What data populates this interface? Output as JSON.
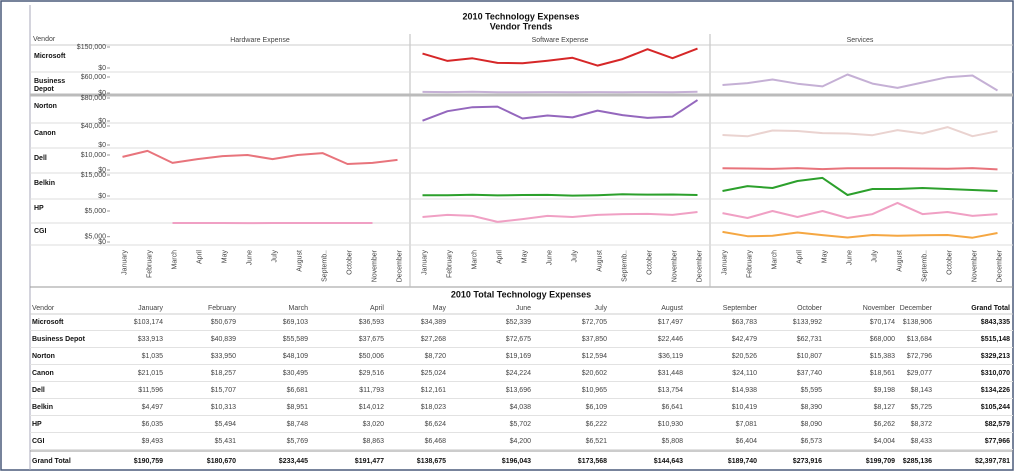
{
  "chart_data": {
    "type": "line",
    "title": "2010 Technology Expenses",
    "subtitle": "Vendor Trends",
    "row_header": "Vendor",
    "panels": [
      "Hardware Expense",
      "Software Expense",
      "Services"
    ],
    "categories": [
      "January",
      "February",
      "March",
      "April",
      "May",
      "June",
      "July",
      "August",
      "Septemb..",
      "October",
      "November",
      "December"
    ],
    "rows": [
      {
        "name": "Microsoft",
        "ylim": [
          0,
          150000
        ],
        "yticks": [
          {
            "value": 150000,
            "label": "$150,000"
          },
          {
            "value": 0,
            "label": "$0"
          }
        ],
        "series": [
          {
            "name": "Software Expense",
            "color": "#d62728",
            "values": [
              103174,
              50679,
              69103,
              36593,
              34389,
              52339,
              72705,
              17497,
              63783,
              133992,
              70174,
              138906
            ]
          }
        ]
      },
      {
        "name": "Business Depot",
        "ylim": [
          0,
          60000
        ],
        "yticks": [
          {
            "value": 60000,
            "label": "$60,000"
          },
          {
            "value": 0,
            "label": "$0"
          }
        ],
        "series": [
          {
            "name": "Software Expense",
            "color": "#c5b0d5",
            "values": [
              4000,
              3500,
              5000,
              3000,
              2500,
              3500,
              2800,
              3200,
              3000,
              3500,
              2500,
              4500
            ]
          },
          {
            "name": "Services",
            "color": "#c5b0d5",
            "values": [
              29900,
              37300,
              50600,
              34700,
              24800,
              69200,
              35100,
              19200,
              39500,
              59200,
              65500,
              9200
            ]
          }
        ]
      },
      {
        "name": "Norton",
        "ylim": [
          0,
          80000
        ],
        "yticks": [
          {
            "value": 80000,
            "label": "$80,000"
          },
          {
            "value": 0,
            "label": "$0"
          }
        ],
        "series": [
          {
            "name": "Software Expense",
            "color": "#9467bd",
            "values": [
              1035,
              33950,
              48109,
              50006,
              8720,
              19169,
              12594,
              36119,
              20526,
              10807,
              15383,
              72796
            ]
          }
        ]
      },
      {
        "name": "Canon",
        "ylim": [
          0,
          40000
        ],
        "yticks": [
          {
            "value": 40000,
            "label": "$40,000"
          },
          {
            "value": 0,
            "label": "$0"
          }
        ],
        "series": [
          {
            "name": "Services",
            "color": "#ead3d0",
            "values": [
              21015,
              18257,
              30495,
              29516,
              25024,
              24224,
              20602,
              31448,
              24110,
              37740,
              18561,
              29077
            ]
          }
        ]
      },
      {
        "name": "Dell",
        "ylim": [
          0,
          15000
        ],
        "yticks": [
          {
            "value": 10000,
            "label": "$10,000"
          },
          {
            "value": 0,
            "label": "$0"
          }
        ],
        "series": [
          {
            "name": "Hardware Expense",
            "color": "#e8747c",
            "values": [
              8700,
              12700,
              4700,
              7300,
              9300,
              10000,
              7300,
              10000,
              11300,
              4000,
              4700,
              6700
            ]
          },
          {
            "name": "Services",
            "color": "#e8747c",
            "values": [
              1200,
              1000,
              700,
              1300,
              600,
              1100,
              1100,
              1100,
              1000,
              800,
              1300,
              400
            ]
          }
        ]
      },
      {
        "name": "Belkin",
        "ylim": [
          0,
          15000
        ],
        "yticks": [
          {
            "value": 15000,
            "label": "$15,000"
          },
          {
            "value": 0,
            "label": "$0"
          }
        ],
        "series": [
          {
            "name": "Software Expense",
            "color": "#2ca02c",
            "values": [
              500,
              600,
              900,
              400,
              700,
              800,
              300,
              600,
              1200,
              1000,
              1100,
              700
            ]
          },
          {
            "name": "Services",
            "color": "#2ca02c",
            "values": [
              3600,
              7100,
              5700,
              10700,
              12900,
              700,
              5000,
              5000,
              5700,
              5000,
              4300,
              3600
            ]
          }
        ]
      },
      {
        "name": "HP",
        "ylim": [
          0,
          9000
        ],
        "yticks": [
          {
            "value": 5000,
            "label": "$5,000"
          }
        ],
        "series": [
          {
            "name": "Hardware Expense",
            "color": "#f0a0c4",
            "values": [
              null,
              null,
              400,
              400,
              400,
              350,
              400,
              380,
              380,
              370,
              380,
              null
            ]
          },
          {
            "name": "Software Expense",
            "color": "#f0a0c4",
            "values": [
              2700,
              3500,
              3100,
              800,
              1900,
              3100,
              2700,
              3500,
              3800,
              3900,
              3500,
              4600
            ]
          },
          {
            "name": "Services",
            "color": "#f0a0c4",
            "values": [
              4200,
              2300,
              5000,
              2700,
              5000,
              2300,
              3800,
              8100,
              3800,
              4600,
              3100,
              3800
            ]
          }
        ]
      },
      {
        "name": "CGI",
        "ylim": [
          0,
          15000
        ],
        "yticks": [
          {
            "value": 5000,
            "label": "$5,000"
          },
          {
            "value": 0,
            "label": "$0"
          }
        ],
        "series": [
          {
            "name": "Services",
            "color": "#f5a742",
            "values": [
              9493,
              5431,
              5769,
              8863,
              6468,
              4200,
              6521,
              5808,
              6404,
              6573,
              4004,
              8433
            ]
          }
        ]
      }
    ]
  },
  "table": {
    "title": "2010 Total Technology Expenses",
    "columns": [
      "Vendor",
      "January",
      "February",
      "March",
      "April",
      "May",
      "June",
      "July",
      "August",
      "September",
      "October",
      "November",
      "December",
      "Grand Total"
    ],
    "rows": [
      [
        "Microsoft",
        "$103,174",
        "$50,679",
        "$69,103",
        "$36,593",
        "$34,389",
        "$52,339",
        "$72,705",
        "$17,497",
        "$63,783",
        "$133,992",
        "$70,174",
        "$138,906",
        "$843,335"
      ],
      [
        "Business Depot",
        "$33,913",
        "$40,839",
        "$55,589",
        "$37,675",
        "$27,268",
        "$72,675",
        "$37,850",
        "$22,446",
        "$42,479",
        "$62,731",
        "$68,000",
        "$13,684",
        "$515,148"
      ],
      [
        "Norton",
        "$1,035",
        "$33,950",
        "$48,109",
        "$50,006",
        "$8,720",
        "$19,169",
        "$12,594",
        "$36,119",
        "$20,526",
        "$10,807",
        "$15,383",
        "$72,796",
        "$329,213"
      ],
      [
        "Canon",
        "$21,015",
        "$18,257",
        "$30,495",
        "$29,516",
        "$25,024",
        "$24,224",
        "$20,602",
        "$31,448",
        "$24,110",
        "$37,740",
        "$18,561",
        "$29,077",
        "$310,070"
      ],
      [
        "Dell",
        "$11,596",
        "$15,707",
        "$6,681",
        "$11,793",
        "$12,161",
        "$13,696",
        "$10,965",
        "$13,754",
        "$14,938",
        "$5,595",
        "$9,198",
        "$8,143",
        "$134,226"
      ],
      [
        "Belkin",
        "$4,497",
        "$10,313",
        "$8,951",
        "$14,012",
        "$18,023",
        "$4,038",
        "$6,109",
        "$6,641",
        "$10,419",
        "$8,390",
        "$8,127",
        "$5,725",
        "$105,244"
      ],
      [
        "HP",
        "$6,035",
        "$5,494",
        "$8,748",
        "$3,020",
        "$6,624",
        "$5,702",
        "$6,222",
        "$10,930",
        "$7,081",
        "$8,090",
        "$6,262",
        "$8,372",
        "$82,579"
      ],
      [
        "CGI",
        "$9,493",
        "$5,431",
        "$5,769",
        "$8,863",
        "$6,468",
        "$4,200",
        "$6,521",
        "$5,808",
        "$6,404",
        "$6,573",
        "$4,004",
        "$8,433",
        "$77,966"
      ],
      [
        "Grand Total",
        "$190,759",
        "$180,670",
        "$233,445",
        "$191,477",
        "$138,675",
        "$196,043",
        "$173,568",
        "$144,643",
        "$189,740",
        "$273,916",
        "$199,709",
        "$285,136",
        "$2,397,781"
      ]
    ]
  }
}
